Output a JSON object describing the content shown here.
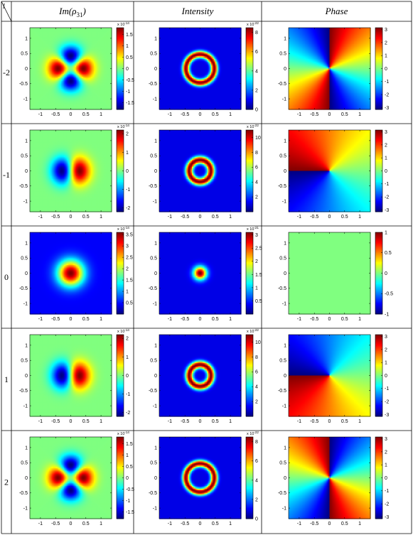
{
  "table": {
    "corner_label": "l",
    "headers": [
      {
        "base": "Im(ρ",
        "sub": "31",
        "close": ")"
      },
      {
        "text": "Intensity"
      },
      {
        "text": "Phase"
      }
    ],
    "rows": [
      {
        "label": "-2",
        "l": -2,
        "im": {
          "cbar_ticks": [
            "1.5",
            "1",
            "0.5",
            "0",
            "-0.5",
            "-1",
            "-1.5"
          ],
          "cbar_values": [
            1.5,
            1,
            0.5,
            0,
            -0.5,
            -1,
            -1.5
          ],
          "crange": [
            -1.8,
            1.8
          ],
          "exponent": "x 10^-14"
        },
        "int": {
          "cbar_ticks": [
            "8",
            "6",
            "4",
            "2",
            "0"
          ],
          "cbar_values": [
            8,
            6,
            4,
            2,
            0
          ],
          "crange": [
            0,
            8.5
          ],
          "exponent": "x 10^-22"
        },
        "ph": {
          "cbar_ticks": [
            "3",
            "2",
            "1",
            "0",
            "-1",
            "-2",
            "-3"
          ],
          "cbar_values": [
            3,
            2,
            1,
            0,
            -1,
            -2,
            -3
          ],
          "crange": [
            -3.14,
            3.14
          ]
        }
      },
      {
        "label": "-1",
        "l": -1,
        "im": {
          "cbar_ticks": [
            "2",
            "1",
            "0",
            "-1",
            "-2"
          ],
          "cbar_values": [
            2,
            1,
            0,
            -1,
            -2
          ],
          "crange": [
            -2.2,
            2.2
          ],
          "exponent": "x 10^-14"
        },
        "int": {
          "cbar_ticks": [
            "10",
            "8",
            "6",
            "4",
            "2"
          ],
          "cbar_values": [
            10,
            8,
            6,
            4,
            2
          ],
          "crange": [
            0,
            11
          ],
          "exponent": "x 10^-22"
        },
        "ph": {
          "cbar_ticks": [
            "3",
            "2",
            "1",
            "0",
            "-1",
            "-2",
            "-3"
          ],
          "cbar_values": [
            3,
            2,
            1,
            0,
            -1,
            -2,
            -3
          ],
          "crange": [
            -3.14,
            3.14
          ]
        }
      },
      {
        "label": "0",
        "l": 0,
        "im": {
          "cbar_ticks": [
            "3.5",
            "3",
            "2.5",
            "2",
            "1.5",
            "1",
            "0.5"
          ],
          "cbar_values": [
            3.5,
            3,
            2.5,
            2,
            1.5,
            1,
            0.5
          ],
          "crange": [
            0,
            3.6
          ],
          "exponent": "x 10^-14"
        },
        "int": {
          "cbar_ticks": [
            "3",
            "2.5",
            "2",
            "1.5",
            "1",
            "0.5"
          ],
          "cbar_values": [
            3,
            2.5,
            2,
            1.5,
            1,
            0.5
          ],
          "crange": [
            0,
            3.1
          ],
          "exponent": "x 10^-21"
        },
        "ph": {
          "cbar_ticks": [
            "1",
            "0.5",
            "0",
            "-0.5",
            "-1"
          ],
          "cbar_values": [
            1,
            0.5,
            0,
            -0.5,
            -1
          ],
          "crange": [
            -1,
            1
          ]
        }
      },
      {
        "label": "1",
        "l": 1,
        "im": {
          "cbar_ticks": [
            "2",
            "1",
            "0",
            "-1",
            "-2"
          ],
          "cbar_values": [
            2,
            1,
            0,
            -1,
            -2
          ],
          "crange": [
            -2.2,
            2.2
          ],
          "exponent": "x 10^-14"
        },
        "int": {
          "cbar_ticks": [
            "10",
            "8",
            "6",
            "4",
            "2"
          ],
          "cbar_values": [
            10,
            8,
            6,
            4,
            2
          ],
          "crange": [
            0,
            11
          ],
          "exponent": "x 10^-22"
        },
        "ph": {
          "cbar_ticks": [
            "3",
            "2",
            "1",
            "0",
            "-1",
            "-2",
            "-3"
          ],
          "cbar_values": [
            3,
            2,
            1,
            0,
            -1,
            -2,
            -3
          ],
          "crange": [
            -3.14,
            3.14
          ]
        }
      },
      {
        "label": "2",
        "l": 2,
        "im": {
          "cbar_ticks": [
            "1.5",
            "1",
            "0.5",
            "0",
            "-0.5",
            "-1",
            "-1.5"
          ],
          "cbar_values": [
            1.5,
            1,
            0.5,
            0,
            -0.5,
            -1,
            -1.5
          ],
          "crange": [
            -1.8,
            1.8
          ],
          "exponent": "x 10^-14"
        },
        "int": {
          "cbar_ticks": [
            "8",
            "6",
            "4",
            "2",
            "0"
          ],
          "cbar_values": [
            8,
            6,
            4,
            2,
            0
          ],
          "crange": [
            0,
            8.5
          ],
          "exponent": "x 10^-22"
        },
        "ph": {
          "cbar_ticks": [
            "3",
            "2",
            "1",
            "0",
            "-1",
            "-2",
            "-3"
          ],
          "cbar_values": [
            3,
            2,
            1,
            0,
            -1,
            -2,
            -3
          ],
          "crange": [
            -3.14,
            3.14
          ]
        }
      }
    ]
  },
  "axes": {
    "x_ticks": [
      "-1",
      "-0.5",
      "0",
      "0.5",
      "1"
    ],
    "x_values": [
      -1,
      -0.5,
      0,
      0.5,
      1
    ],
    "y_ticks": [
      "1",
      "0.5",
      "0",
      "-0.5",
      "-1"
    ],
    "y_values": [
      1,
      0.5,
      0,
      -0.5,
      -1
    ],
    "xlim": [
      -1.35,
      1.35
    ],
    "ylim": [
      -1.35,
      1.35
    ]
  },
  "chart_data": {
    "type": "heatmap",
    "colormap": "jet",
    "columns": [
      "Im(ρ31)",
      "Intensity",
      "Phase"
    ],
    "rows_l": [
      -2,
      -1,
      0,
      1,
      2
    ],
    "xlim": [
      -1.35,
      1.35
    ],
    "ylim": [
      -1.35,
      1.35
    ],
    "x_ticks": [
      -1,
      -0.5,
      0,
      0.5,
      1
    ],
    "y_ticks": [
      1,
      0.5,
      0,
      -0.5,
      -1
    ]
  }
}
